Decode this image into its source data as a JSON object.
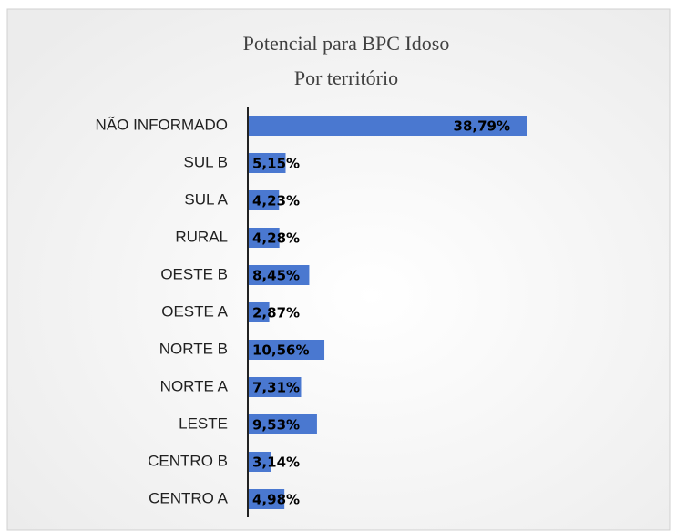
{
  "chart_data": {
    "type": "hbar",
    "title": [
      "Potencial para BPC  Idoso",
      "Por território"
    ],
    "categories": [
      "NÃO INFORMADO",
      "SUL B",
      "SUL A",
      "RURAL",
      "OESTE B",
      "OESTE A",
      "NORTE B",
      "NORTE A",
      "LESTE",
      "CENTRO B",
      "CENTRO A"
    ],
    "values": [
      38.79,
      5.15,
      4.23,
      4.28,
      8.45,
      2.87,
      10.56,
      7.31,
      9.53,
      3.14,
      4.98
    ],
    "value_labels": [
      "38,79%",
      "5,15%",
      "4,23%",
      "4,28%",
      "8,45%",
      "2,87%",
      "10,56%",
      "7,31%",
      "9,53%",
      "3,14%",
      "4,98%"
    ],
    "color": "#4a78d0"
  }
}
